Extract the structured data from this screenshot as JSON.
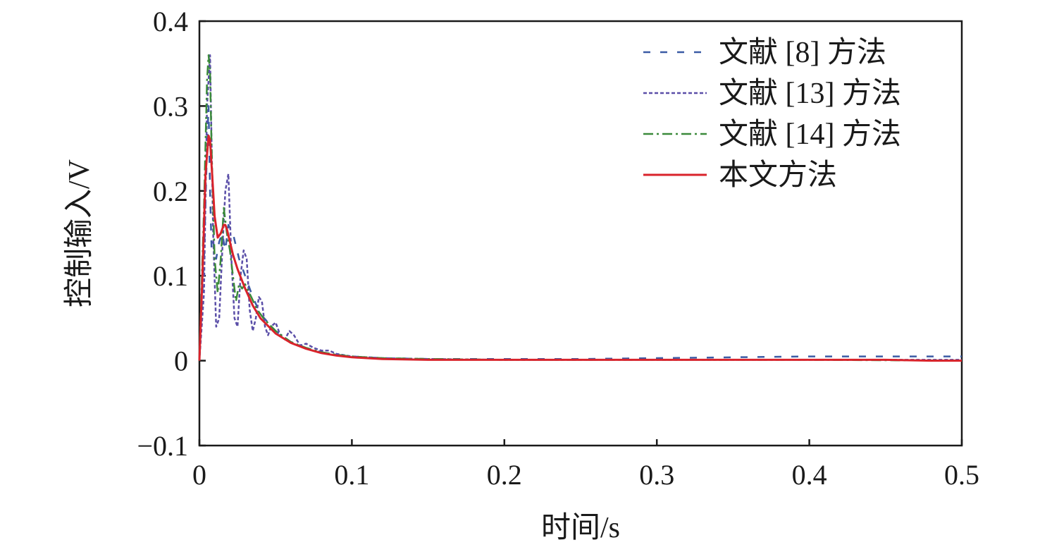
{
  "chart_data": {
    "type": "line",
    "title": "",
    "xlabel": "时间/s",
    "ylabel": "控制输入/V",
    "xlim": [
      0,
      0.5
    ],
    "ylim": [
      -0.1,
      0.4
    ],
    "xticks": [
      "0",
      "0.1",
      "0.2",
      "0.3",
      "0.4",
      "0.5"
    ],
    "yticks": [
      "0.4",
      "0.3",
      "0.2",
      "0.1",
      "0",
      "−0.1"
    ],
    "legend_position": "top-right",
    "grid": false,
    "series": [
      {
        "name": "文献 [8] 方法",
        "color": "#3b5ba5",
        "dash": "dashed",
        "x": [
          0,
          0.003,
          0.005,
          0.006,
          0.007,
          0.008,
          0.009,
          0.011,
          0.013,
          0.015,
          0.017,
          0.019,
          0.022,
          0.026,
          0.03,
          0.035,
          0.04,
          0.05,
          0.06,
          0.07,
          0.08,
          0.09,
          0.1,
          0.12,
          0.15,
          0.2,
          0.25,
          0.3,
          0.35,
          0.4,
          0.45,
          0.5
        ],
        "y": [
          0,
          0.12,
          0.25,
          0.3,
          0.2,
          0.13,
          0.14,
          0.12,
          0.14,
          0.15,
          0.13,
          0.16,
          0.15,
          0.12,
          0.1,
          0.075,
          0.055,
          0.035,
          0.022,
          0.015,
          0.01,
          0.007,
          0.005,
          0.003,
          0.002,
          0.002,
          0.002,
          0.003,
          0.004,
          0.005,
          0.005,
          0.005
        ]
      },
      {
        "name": "文献 [13] 方法",
        "color": "#5b4fa8",
        "dash": "dotted",
        "x": [
          0,
          0.003,
          0.005,
          0.007,
          0.009,
          0.011,
          0.013,
          0.015,
          0.017,
          0.019,
          0.021,
          0.023,
          0.025,
          0.027,
          0.029,
          0.031,
          0.033,
          0.035,
          0.037,
          0.039,
          0.041,
          0.043,
          0.045,
          0.047,
          0.05,
          0.053,
          0.056,
          0.059,
          0.062,
          0.066,
          0.07,
          0.075,
          0.08,
          0.085,
          0.09,
          0.1,
          0.12,
          0.15,
          0.2,
          0.3,
          0.4,
          0.5
        ],
        "y": [
          0,
          0.08,
          0.3,
          0.36,
          0.15,
          0.04,
          0.05,
          0.13,
          0.2,
          0.22,
          0.12,
          0.05,
          0.04,
          0.1,
          0.13,
          0.12,
          0.06,
          0.035,
          0.05,
          0.075,
          0.07,
          0.04,
          0.03,
          0.04,
          0.045,
          0.03,
          0.025,
          0.035,
          0.03,
          0.018,
          0.02,
          0.015,
          0.012,
          0.012,
          0.008,
          0.005,
          0.003,
          0.002,
          0.001,
          0.001,
          0.001,
          0.001
        ]
      },
      {
        "name": "文献 [14] 方法",
        "color": "#3a8a3a",
        "dash": "dashdot",
        "x": [
          0,
          0.003,
          0.005,
          0.006,
          0.007,
          0.008,
          0.01,
          0.012,
          0.014,
          0.016,
          0.018,
          0.02,
          0.022,
          0.024,
          0.026,
          0.028,
          0.03,
          0.034,
          0.038,
          0.042,
          0.05,
          0.06,
          0.07,
          0.08,
          0.09,
          0.1,
          0.12,
          0.15,
          0.2,
          0.3,
          0.4,
          0.5
        ],
        "y": [
          0,
          0.18,
          0.33,
          0.36,
          0.34,
          0.25,
          0.12,
          0.08,
          0.12,
          0.18,
          0.15,
          0.13,
          0.1,
          0.07,
          0.09,
          0.085,
          0.09,
          0.075,
          0.06,
          0.05,
          0.035,
          0.022,
          0.015,
          0.01,
          0.007,
          0.005,
          0.003,
          0.002,
          0.001,
          0.001,
          0.001,
          0
        ]
      },
      {
        "name": "本文方法",
        "color": "#d9232b",
        "dash": "solid",
        "x": [
          0,
          0.002,
          0.004,
          0.006,
          0.007,
          0.008,
          0.009,
          0.01,
          0.012,
          0.014,
          0.016,
          0.017,
          0.018,
          0.02,
          0.022,
          0.025,
          0.03,
          0.035,
          0.04,
          0.05,
          0.06,
          0.07,
          0.08,
          0.09,
          0.1,
          0.12,
          0.15,
          0.2,
          0.25,
          0.3,
          0.35,
          0.4,
          0.45,
          0.48,
          0.5
        ],
        "y": [
          0,
          0.1,
          0.22,
          0.265,
          0.26,
          0.23,
          0.2,
          0.17,
          0.145,
          0.15,
          0.16,
          0.16,
          0.155,
          0.14,
          0.125,
          0.108,
          0.085,
          0.065,
          0.05,
          0.032,
          0.021,
          0.014,
          0.009,
          0.006,
          0.004,
          0.002,
          0.001,
          0.001,
          0.001,
          0.001,
          0.001,
          0.001,
          0.001,
          0,
          0
        ]
      }
    ]
  }
}
